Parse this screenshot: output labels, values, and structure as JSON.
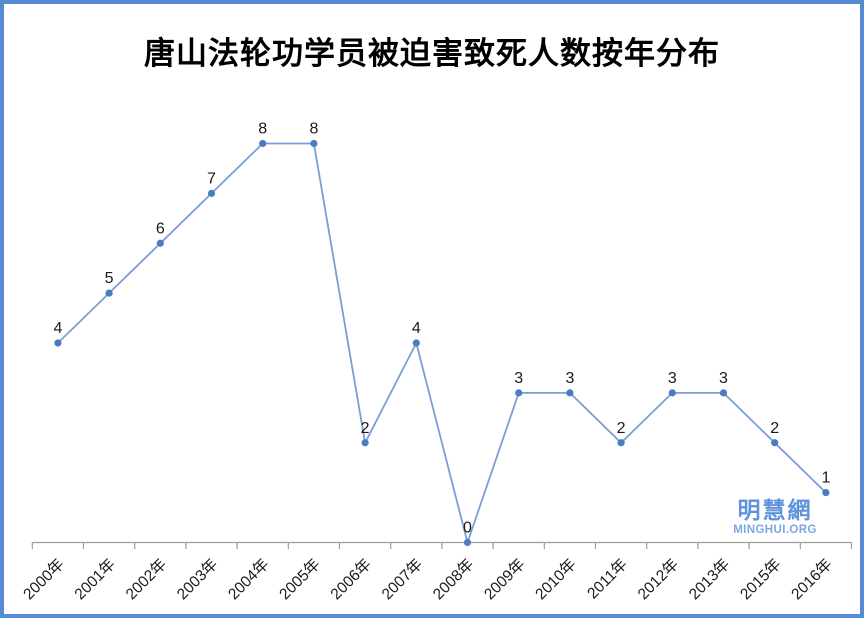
{
  "page": {
    "title": "唐山法轮功学员被迫害致死人数按年分布",
    "watermark": {
      "name": "明慧網",
      "site": "MINGHUI.ORG"
    }
  },
  "chart_data": {
    "type": "line",
    "title": "唐山法轮功学员被迫害致死人数按年分布",
    "categories": [
      "2000年",
      "2001年",
      "2002年",
      "2003年",
      "2004年",
      "2005年",
      "2006年",
      "2007年",
      "2008年",
      "2009年",
      "2010年",
      "2011年",
      "2012年",
      "2013年",
      "2015年",
      "2016年"
    ],
    "values": [
      4,
      5,
      6,
      7,
      8,
      8,
      2,
      4,
      0,
      3,
      3,
      2,
      3,
      3,
      2,
      1
    ],
    "xlabel": "",
    "ylabel": "",
    "ylim": [
      0,
      8
    ],
    "grid": false,
    "legend": "none",
    "data_labels": true,
    "x_tick_rotation": -45,
    "colors": {
      "line": "#7b9fd4",
      "marker": "#4a7cbf",
      "axis": "#9d9d9d",
      "label_text": "#1a1a1a",
      "frame_border": "#568ad4",
      "watermark_main": "#5f93dc",
      "watermark_sub": "#7fa6e2"
    }
  }
}
